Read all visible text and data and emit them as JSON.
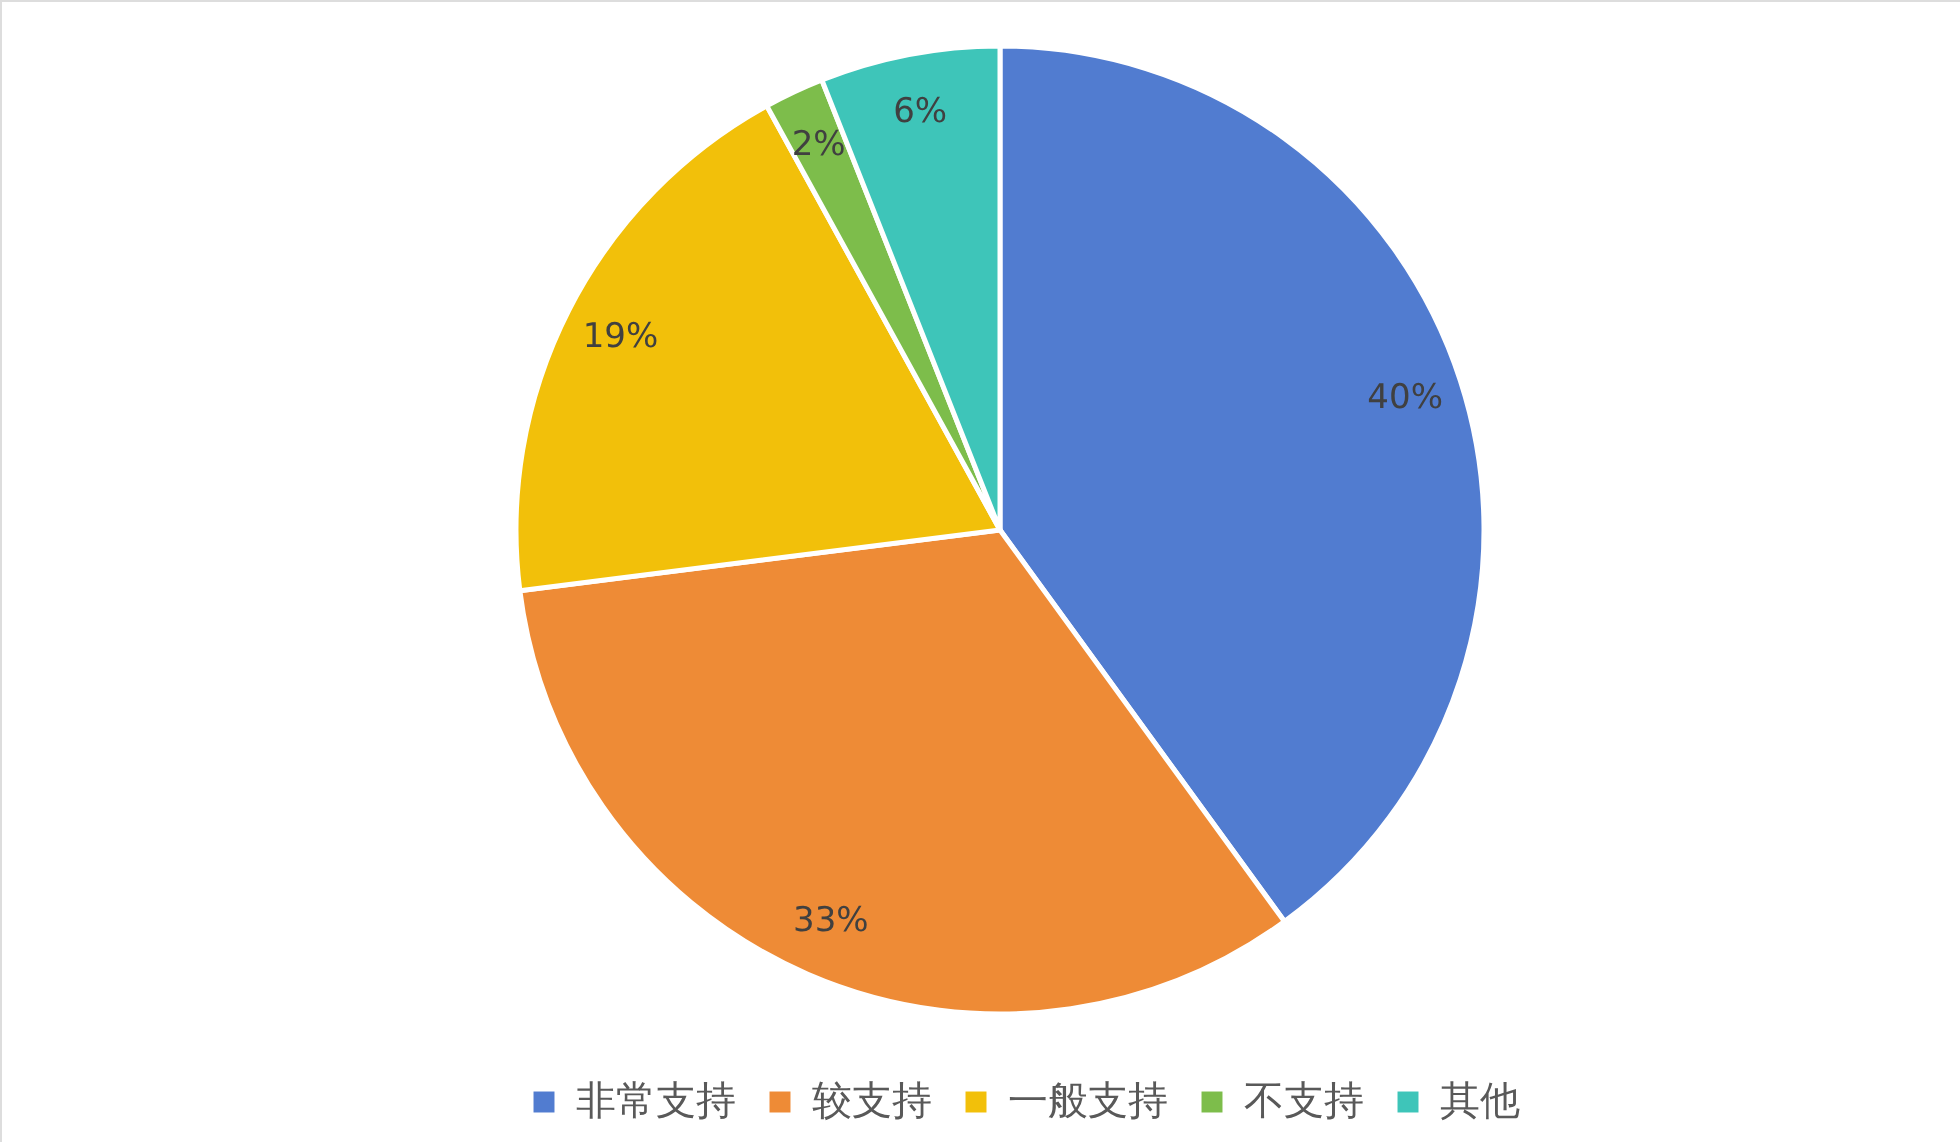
{
  "chart_data": {
    "type": "pie",
    "categories": [
      "非常支持",
      "较支持",
      "一般支持",
      "不支持",
      "其他"
    ],
    "values": [
      40,
      33,
      19,
      2,
      6
    ],
    "colors": [
      "#517cd0",
      "#ee8b36",
      "#f2c00a",
      "#7dbd4b",
      "#3ec5b9"
    ],
    "value_labels": [
      "40%",
      "33%",
      "19%",
      "2%",
      "6%"
    ],
    "legend": "bottom"
  }
}
